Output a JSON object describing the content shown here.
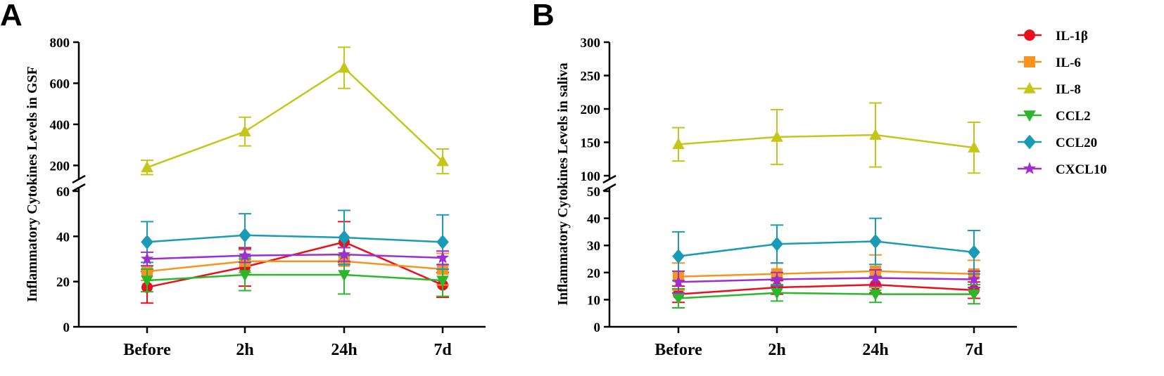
{
  "chart_data": [
    {
      "type": "line",
      "panel_label": "A",
      "ylabel": "Inflammatory Cytokines Levels in GSF",
      "xlabel": "",
      "categories": [
        "Before",
        "2h",
        "24h",
        "7d"
      ],
      "y_axis_break": true,
      "upper_segment": {
        "ylim": [
          150,
          800
        ],
        "ticks": [
          "200",
          "400",
          "600",
          "800"
        ]
      },
      "lower_segment": {
        "ylim": [
          0,
          60
        ],
        "ticks": [
          "0",
          "20",
          "40",
          "60"
        ]
      },
      "series": [
        {
          "name": "IL-1β",
          "color": "#e8101c",
          "marker": "circle",
          "values": [
            17.5,
            26.5,
            37.5,
            18.5
          ],
          "errors": [
            7,
            8.5,
            9,
            5.5
          ]
        },
        {
          "name": "IL-6",
          "color": "#f7931e",
          "marker": "square",
          "values": [
            24.5,
            29,
            29,
            25.5
          ],
          "errors": [
            4,
            5,
            6,
            7
          ]
        },
        {
          "name": "IL-8",
          "color": "#c5c61a",
          "marker": "triangle-up",
          "values": [
            190,
            365,
            675,
            220
          ],
          "errors": [
            35,
            70,
            100,
            60
          ]
        },
        {
          "name": "CCL2",
          "color": "#2cb62c",
          "marker": "triangle-down",
          "values": [
            20.5,
            23,
            23,
            20.5
          ],
          "errors": [
            5,
            7,
            8.5,
            7
          ]
        },
        {
          "name": "CCL20",
          "color": "#1a9bb5",
          "marker": "diamond",
          "values": [
            37.5,
            40.5,
            39.5,
            37.5
          ],
          "errors": [
            9,
            9.5,
            12,
            12
          ]
        },
        {
          "name": "CXCL10",
          "color": "#9b2fd2",
          "marker": "star",
          "values": [
            30,
            31.5,
            32,
            30.5
          ],
          "errors": [
            3,
            3,
            3,
            3
          ]
        }
      ]
    },
    {
      "type": "line",
      "panel_label": "B",
      "ylabel": "Inflammatory Cytokines Levels in saliva",
      "xlabel": "",
      "categories": [
        "Before",
        "2h",
        "24h",
        "7d"
      ],
      "y_axis_break": true,
      "upper_segment": {
        "ylim": [
          100,
          300
        ],
        "ticks": [
          "100",
          "150",
          "200",
          "250",
          "300"
        ]
      },
      "lower_segment": {
        "ylim": [
          0,
          50
        ],
        "ticks": [
          "0",
          "10",
          "20",
          "30",
          "40",
          "50"
        ]
      },
      "series": [
        {
          "name": "IL-1β",
          "color": "#e8101c",
          "marker": "circle",
          "values": [
            12,
            14.5,
            15.5,
            13.5
          ],
          "errors": [
            3,
            2.5,
            3,
            3
          ]
        },
        {
          "name": "IL-6",
          "color": "#f7931e",
          "marker": "square",
          "values": [
            18.5,
            19.5,
            20.5,
            19.5
          ],
          "errors": [
            5,
            4,
            6,
            5
          ]
        },
        {
          "name": "IL-8",
          "color": "#c5c61a",
          "marker": "triangle-up",
          "values": [
            147,
            158,
            161,
            142
          ],
          "errors": [
            25,
            41,
            48,
            38
          ]
        },
        {
          "name": "CCL2",
          "color": "#2cb62c",
          "marker": "triangle-down",
          "values": [
            10.5,
            12.5,
            12,
            12
          ],
          "errors": [
            3.5,
            3,
            3,
            3.5
          ]
        },
        {
          "name": "CCL20",
          "color": "#1a9bb5",
          "marker": "diamond",
          "values": [
            26,
            30.5,
            31.5,
            27.5
          ],
          "errors": [
            9,
            7,
            8.5,
            8
          ]
        },
        {
          "name": "CXCL10",
          "color": "#9b2fd2",
          "marker": "star",
          "values": [
            16.5,
            17.5,
            18,
            17.5
          ],
          "errors": [
            4,
            2.5,
            3,
            3
          ]
        }
      ]
    }
  ],
  "legend": {
    "position": "right",
    "items": [
      {
        "label": "IL-1β",
        "color": "#e8101c",
        "marker": "circle"
      },
      {
        "label": "IL-6",
        "color": "#f7931e",
        "marker": "square"
      },
      {
        "label": "IL-8",
        "color": "#c5c61a",
        "marker": "triangle-up"
      },
      {
        "label": "CCL2",
        "color": "#2cb62c",
        "marker": "triangle-down"
      },
      {
        "label": "CCL20",
        "color": "#1a9bb5",
        "marker": "diamond"
      },
      {
        "label": "CXCL10",
        "color": "#9b2fd2",
        "marker": "star"
      }
    ]
  }
}
